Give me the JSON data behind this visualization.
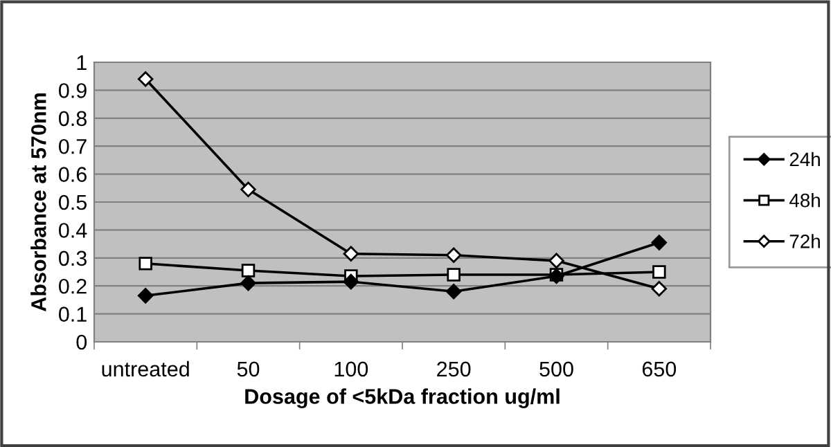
{
  "chart_data": {
    "type": "line",
    "xlabel": "Dosage of <5kDa fraction ug/ml",
    "ylabel": "Absorbance at 570nm",
    "categories": [
      "untreated",
      "50",
      "100",
      "250",
      "500",
      "650"
    ],
    "series": [
      {
        "name": "24h",
        "color": "#000000",
        "marker": "diamond",
        "values": [
          0.165,
          0.21,
          0.215,
          0.18,
          0.235,
          0.355
        ]
      },
      {
        "name": "48h",
        "color": "#000000",
        "marker": "square",
        "values": [
          0.28,
          0.255,
          0.235,
          0.24,
          0.24,
          0.25
        ]
      },
      {
        "name": "72h",
        "color": "#000000",
        "marker": "diamond",
        "values": [
          0.94,
          0.545,
          0.315,
          0.31,
          0.29,
          0.19
        ]
      }
    ],
    "ylim": [
      0,
      1
    ],
    "yticks": [
      0,
      0.1,
      0.2,
      0.3,
      0.4,
      0.5,
      0.6,
      0.7,
      0.8,
      0.9,
      1
    ],
    "grid": "y",
    "legend": "right",
    "line_style": "solid"
  }
}
